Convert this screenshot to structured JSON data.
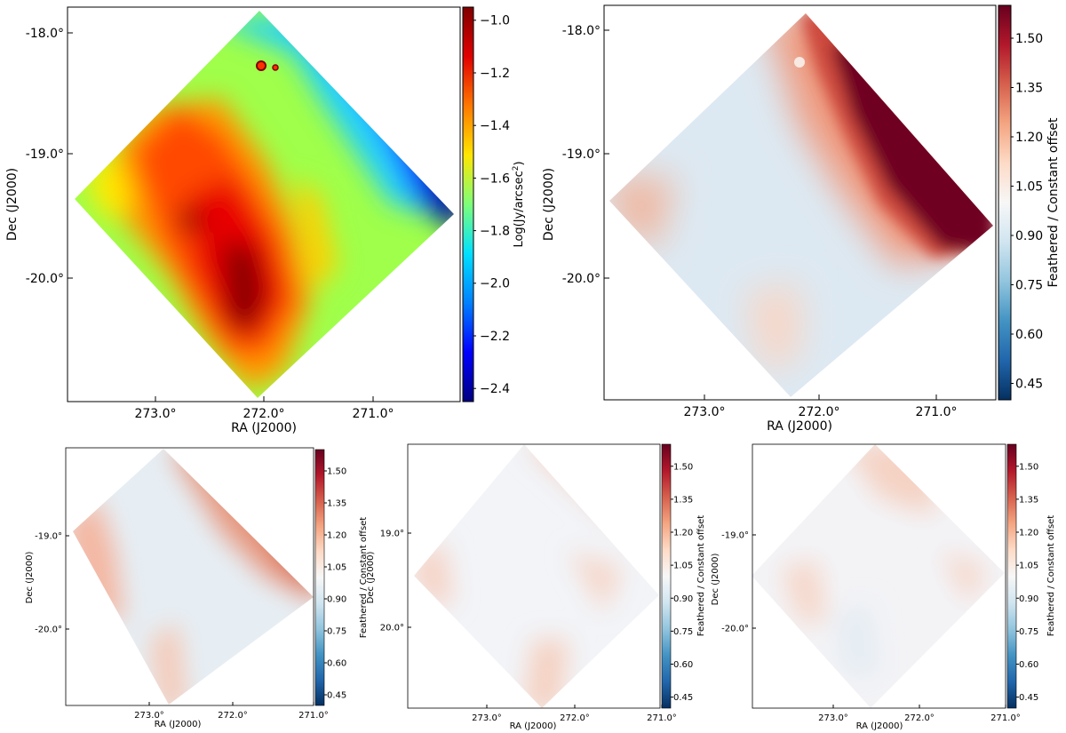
{
  "chart_data": [
    {
      "type": "heatmap",
      "id": "panel-a",
      "description": "Intensity map, jet colormap",
      "xlabel": "RA (J2000)",
      "ylabel": "Dec (J2000)",
      "xticks": [
        "273.0°",
        "272.0°",
        "271.0°"
      ],
      "yticks": [
        "-18.0°",
        "-19.0°",
        "-20.0°"
      ],
      "colorbar": {
        "label": "Log(Jy/arcsec²)",
        "label_main": "Log(Jy/arcsec",
        "label_sup": "2",
        "label_end": ")",
        "ticks": [
          "−1.0",
          "−1.2",
          "−1.4",
          "−1.6",
          "−1.8",
          "−2.0",
          "−2.2",
          "−2.4"
        ],
        "tick_values": [
          -1.0,
          -1.2,
          -1.4,
          -1.6,
          -1.8,
          -2.0,
          -2.2,
          -2.4
        ],
        "range": [
          -2.45,
          -0.95
        ],
        "colors": [
          "#00007f",
          "#0000ff",
          "#0080ff",
          "#00e0ff",
          "#7dff7a",
          "#ffe600",
          "#ff7800",
          "#e00000",
          "#7f0000"
        ]
      }
    },
    {
      "type": "heatmap",
      "id": "panel-b",
      "description": "Feathered / constant offset ratio, RdBu colormap",
      "xlabel": "RA (J2000)",
      "ylabel": "Dec (J2000)",
      "xticks": [
        "273.0°",
        "272.0°",
        "271.0°"
      ],
      "yticks": [
        "-18.0°",
        "-19.0°",
        "-20.0°"
      ],
      "colorbar": {
        "label": "Feathered / Constant offset",
        "ticks": [
          "1.50",
          "1.35",
          "1.20",
          "1.05",
          "0.90",
          "0.75",
          "0.60",
          "0.45"
        ],
        "tick_values": [
          1.5,
          1.35,
          1.2,
          1.05,
          0.9,
          0.75,
          0.6,
          0.45
        ],
        "range": [
          0.4,
          1.6
        ],
        "colors": [
          "#053061",
          "#2166ac",
          "#4393c3",
          "#92c5de",
          "#d1e5f0",
          "#f7f7f7",
          "#fddbc7",
          "#f4a582",
          "#d6604d",
          "#b2182b",
          "#67001f"
        ]
      }
    },
    {
      "type": "heatmap",
      "id": "panel-c",
      "xlabel": "RA (J2000)",
      "ylabel": "Dec (J2000)",
      "xticks": [
        "273.0°",
        "272.0°",
        "271.0°"
      ],
      "yticks": [
        "-19.0°",
        "-20.0°"
      ],
      "colorbar": {
        "label": "Feathered / Constant offset",
        "ticks": [
          "1.50",
          "1.35",
          "1.20",
          "1.05",
          "0.90",
          "0.75",
          "0.60",
          "0.45"
        ],
        "tick_values": [
          1.5,
          1.35,
          1.2,
          1.05,
          0.9,
          0.75,
          0.6,
          0.45
        ],
        "range": [
          0.4,
          1.6
        ]
      }
    },
    {
      "type": "heatmap",
      "id": "panel-d",
      "xlabel": "RA (J2000)",
      "ylabel": "Dec (J2000)",
      "xticks": [
        "273.0°",
        "272.0°",
        "271.0°"
      ],
      "yticks": [
        "19.0°",
        "20.0°"
      ],
      "colorbar": {
        "label": "Feathered / Constant offset",
        "ticks": [
          "1.50",
          "1.35",
          "1.20",
          "1.05",
          "0.90",
          "0.75",
          "0.60",
          "0.45"
        ],
        "tick_values": [
          1.5,
          1.35,
          1.2,
          1.05,
          0.9,
          0.75,
          0.6,
          0.45
        ],
        "range": [
          0.4,
          1.6
        ]
      }
    },
    {
      "type": "heatmap",
      "id": "panel-e",
      "xlabel": "RA (J2000)",
      "ylabel": "Dec (J2000)",
      "xticks": [
        "273.0°",
        "272.0°",
        "271.0°"
      ],
      "yticks": [
        "-19.0°",
        "-20.0°"
      ],
      "colorbar": {
        "label": "Feathered / Constant offset",
        "ticks": [
          "1.50",
          "1.35",
          "1.20",
          "1.05",
          "0.90",
          "0.75",
          "0.60",
          "0.45"
        ],
        "tick_values": [
          1.5,
          1.35,
          1.2,
          1.05,
          0.9,
          0.75,
          0.6,
          0.45
        ],
        "range": [
          0.4,
          1.6
        ]
      }
    }
  ]
}
